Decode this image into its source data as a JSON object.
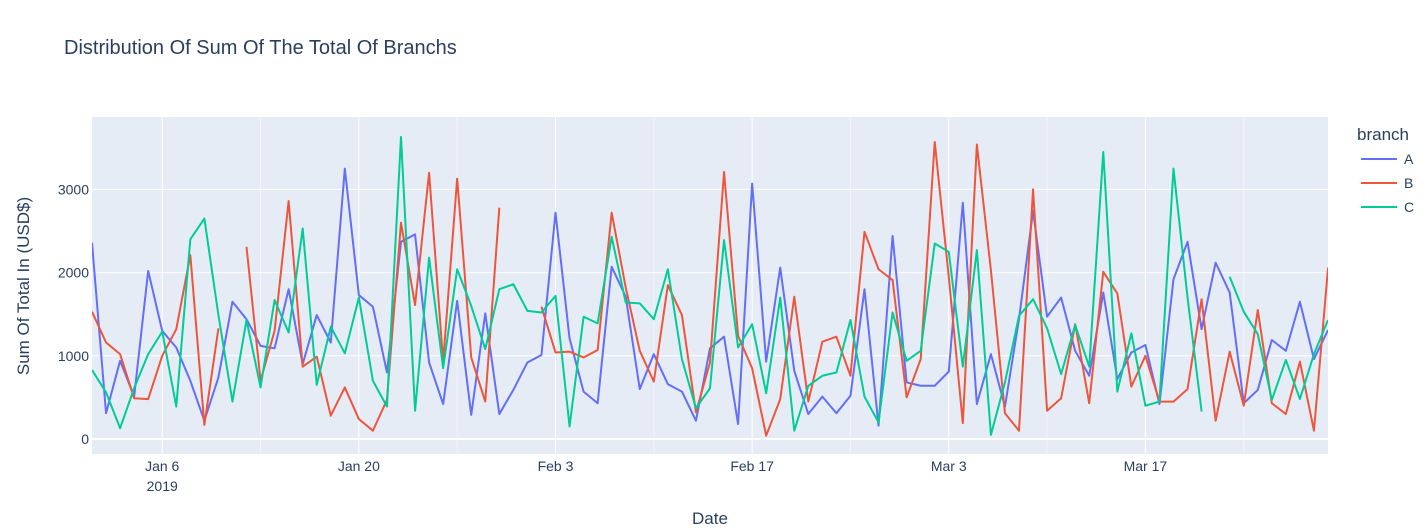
{
  "chart_data": {
    "type": "line",
    "title": "Distribution Of Sum Of The Total Of Branchs",
    "xlabel": "Date",
    "ylabel": "Sum Of Total In (USD$)",
    "xlim": [
      "2019-01-01",
      "2019-03-30"
    ],
    "ylim": [
      -180,
      3870
    ],
    "grid": true,
    "legend": {
      "title": "branch",
      "position": "top-right"
    },
    "x_ticks": [
      {
        "date": "2019-01-06",
        "label": "Jan 6",
        "sublabel": "2019"
      },
      {
        "date": "2019-01-20",
        "label": "Jan 20",
        "sublabel": ""
      },
      {
        "date": "2019-02-03",
        "label": "Feb 3",
        "sublabel": ""
      },
      {
        "date": "2019-02-17",
        "label": "Feb 17",
        "sublabel": ""
      },
      {
        "date": "2019-03-03",
        "label": "Mar 3",
        "sublabel": ""
      },
      {
        "date": "2019-03-17",
        "label": "Mar 17",
        "sublabel": ""
      }
    ],
    "y_ticks": [
      {
        "value": 0,
        "label": "0"
      },
      {
        "value": 1000,
        "label": "1000"
      },
      {
        "value": 2000,
        "label": "2000"
      },
      {
        "value": 3000,
        "label": "3000"
      }
    ],
    "series": [
      {
        "name": "A",
        "color": "#636efa",
        "points": [
          [
            "2019-01-01",
            2360
          ],
          [
            "2019-01-02",
            310
          ],
          [
            "2019-01-03",
            940
          ],
          [
            "2019-01-04",
            510
          ],
          [
            "2019-01-05",
            2020
          ],
          [
            "2019-01-06",
            1300
          ],
          [
            "2019-01-07",
            1100
          ],
          [
            "2019-01-08",
            700
          ],
          [
            "2019-01-09",
            220
          ],
          [
            "2019-01-10",
            740
          ],
          [
            "2019-01-11",
            1650
          ],
          [
            "2019-01-12",
            1440
          ],
          [
            "2019-01-13",
            1120
          ],
          [
            "2019-01-14",
            1090
          ],
          [
            "2019-01-15",
            1800
          ],
          [
            "2019-01-16",
            900
          ],
          [
            "2019-01-17",
            1490
          ],
          [
            "2019-01-18",
            1160
          ],
          [
            "2019-01-19",
            3250
          ],
          [
            "2019-01-20",
            1730
          ],
          [
            "2019-01-21",
            1590
          ],
          [
            "2019-01-22",
            800
          ],
          [
            "2019-01-23",
            2370
          ],
          [
            "2019-01-24",
            2460
          ],
          [
            "2019-01-25",
            920
          ],
          [
            "2019-01-26",
            420
          ],
          [
            "2019-01-27",
            1660
          ],
          [
            "2019-01-28",
            290
          ],
          [
            "2019-01-29",
            1510
          ],
          [
            "2019-01-30",
            300
          ],
          [
            "2019-01-31",
            590
          ],
          [
            "2019-02-01",
            920
          ],
          [
            "2019-02-02",
            1010
          ],
          [
            "2019-02-03",
            2720
          ],
          [
            "2019-02-04",
            1210
          ],
          [
            "2019-02-05",
            570
          ],
          [
            "2019-02-06",
            430
          ],
          [
            "2019-02-07",
            2070
          ],
          [
            "2019-02-08",
            1710
          ],
          [
            "2019-02-09",
            600
          ],
          [
            "2019-02-10",
            1020
          ],
          [
            "2019-02-11",
            660
          ],
          [
            "2019-02-12",
            570
          ],
          [
            "2019-02-13",
            220
          ],
          [
            "2019-02-14",
            1090
          ],
          [
            "2019-02-15",
            1230
          ],
          [
            "2019-02-16",
            180
          ],
          [
            "2019-02-17",
            3070
          ],
          [
            "2019-02-18",
            930
          ],
          [
            "2019-02-19",
            2060
          ],
          [
            "2019-02-20",
            820
          ],
          [
            "2019-02-21",
            300
          ],
          [
            "2019-02-22",
            510
          ],
          [
            "2019-02-23",
            310
          ],
          [
            "2019-02-24",
            520
          ],
          [
            "2019-02-25",
            1800
          ],
          [
            "2019-02-26",
            160
          ],
          [
            "2019-02-27",
            2440
          ],
          [
            "2019-02-28",
            680
          ],
          [
            "2019-03-01",
            640
          ],
          [
            "2019-03-02",
            640
          ],
          [
            "2019-03-03",
            810
          ],
          [
            "2019-03-04",
            2840
          ],
          [
            "2019-03-05",
            420
          ],
          [
            "2019-03-06",
            1020
          ],
          [
            "2019-03-07",
            390
          ],
          [
            "2019-03-08",
            1440
          ],
          [
            "2019-03-09",
            2740
          ],
          [
            "2019-03-10",
            1470
          ],
          [
            "2019-03-11",
            1700
          ],
          [
            "2019-03-12",
            1060
          ],
          [
            "2019-03-13",
            760
          ],
          [
            "2019-03-14",
            1760
          ],
          [
            "2019-03-15",
            720
          ],
          [
            "2019-03-16",
            1040
          ],
          [
            "2019-03-17",
            1130
          ],
          [
            "2019-03-18",
            420
          ],
          [
            "2019-03-19",
            1920
          ],
          [
            "2019-03-20",
            2370
          ],
          [
            "2019-03-21",
            1320
          ],
          [
            "2019-03-22",
            2120
          ],
          [
            "2019-03-23",
            1760
          ],
          [
            "2019-03-24",
            430
          ],
          [
            "2019-03-25",
            590
          ],
          [
            "2019-03-26",
            1190
          ],
          [
            "2019-03-27",
            1060
          ],
          [
            "2019-03-28",
            1650
          ],
          [
            "2019-03-29",
            960
          ],
          [
            "2019-03-30",
            1310
          ]
        ]
      },
      {
        "name": "B",
        "color": "#ef553b",
        "points": [
          [
            "2019-01-01",
            1530
          ],
          [
            "2019-01-02",
            1160
          ],
          [
            "2019-01-03",
            1020
          ],
          [
            "2019-01-04",
            490
          ],
          [
            "2019-01-05",
            480
          ],
          [
            "2019-01-06",
            1000
          ],
          [
            "2019-01-07",
            1320
          ],
          [
            "2019-01-08",
            2210
          ],
          [
            "2019-01-09",
            170
          ],
          [
            "2019-01-10",
            1330
          ],
          null,
          [
            "2019-01-12",
            2310
          ],
          [
            "2019-01-13",
            700
          ],
          [
            "2019-01-14",
            1300
          ],
          [
            "2019-01-15",
            2860
          ],
          [
            "2019-01-16",
            870
          ],
          [
            "2019-01-17",
            990
          ],
          [
            "2019-01-18",
            280
          ],
          [
            "2019-01-19",
            620
          ],
          [
            "2019-01-20",
            240
          ],
          [
            "2019-01-21",
            100
          ],
          [
            "2019-01-22",
            470
          ],
          [
            "2019-01-23",
            2600
          ],
          [
            "2019-01-24",
            1610
          ],
          [
            "2019-01-25",
            3200
          ],
          [
            "2019-01-26",
            930
          ],
          [
            "2019-01-27",
            3130
          ],
          [
            "2019-01-28",
            980
          ],
          [
            "2019-01-29",
            450
          ],
          [
            "2019-01-30",
            2780
          ],
          null,
          [
            "2019-02-02",
            1590
          ],
          [
            "2019-02-03",
            1040
          ],
          [
            "2019-02-04",
            1050
          ],
          [
            "2019-02-05",
            980
          ],
          [
            "2019-02-06",
            1070
          ],
          [
            "2019-02-07",
            2720
          ],
          [
            "2019-02-08",
            1820
          ],
          [
            "2019-02-09",
            1060
          ],
          [
            "2019-02-10",
            690
          ],
          [
            "2019-02-11",
            1850
          ],
          [
            "2019-02-12",
            1490
          ],
          [
            "2019-02-13",
            320
          ],
          [
            "2019-02-14",
            920
          ],
          [
            "2019-02-15",
            3210
          ],
          [
            "2019-02-16",
            1240
          ],
          [
            "2019-02-17",
            850
          ],
          [
            "2019-02-18",
            40
          ],
          [
            "2019-02-19",
            480
          ],
          [
            "2019-02-20",
            1710
          ],
          [
            "2019-02-21",
            450
          ],
          [
            "2019-02-22",
            1170
          ],
          [
            "2019-02-23",
            1230
          ],
          [
            "2019-02-24",
            760
          ],
          [
            "2019-02-25",
            2490
          ],
          [
            "2019-02-26",
            2040
          ],
          [
            "2019-02-27",
            1910
          ],
          [
            "2019-02-28",
            500
          ],
          [
            "2019-03-01",
            960
          ],
          [
            "2019-03-02",
            3570
          ],
          [
            "2019-03-03",
            1950
          ],
          [
            "2019-03-04",
            190
          ],
          [
            "2019-03-05",
            3540
          ],
          [
            "2019-03-06",
            2030
          ],
          [
            "2019-03-07",
            310
          ],
          [
            "2019-03-08",
            100
          ],
          [
            "2019-03-09",
            3000
          ],
          [
            "2019-03-10",
            340
          ],
          [
            "2019-03-11",
            490
          ],
          [
            "2019-03-12",
            1380
          ],
          [
            "2019-03-13",
            430
          ],
          [
            "2019-03-14",
            2010
          ],
          [
            "2019-03-15",
            1750
          ],
          [
            "2019-03-16",
            630
          ],
          [
            "2019-03-17",
            1000
          ],
          [
            "2019-03-18",
            450
          ],
          [
            "2019-03-19",
            450
          ],
          [
            "2019-03-20",
            600
          ],
          [
            "2019-03-21",
            1680
          ],
          [
            "2019-03-22",
            220
          ],
          [
            "2019-03-23",
            1050
          ],
          [
            "2019-03-24",
            400
          ],
          [
            "2019-03-25",
            1550
          ],
          [
            "2019-03-26",
            430
          ],
          [
            "2019-03-27",
            300
          ],
          [
            "2019-03-28",
            930
          ],
          [
            "2019-03-29",
            100
          ],
          [
            "2019-03-30",
            2050
          ],
          [
            "2019-03-31",
            1730
          ]
        ]
      },
      {
        "name": "C",
        "color": "#00cc96",
        "points": [
          [
            "2019-01-01",
            830
          ],
          [
            "2019-01-02",
            560
          ],
          [
            "2019-01-03",
            130
          ],
          [
            "2019-01-04",
            610
          ],
          [
            "2019-01-05",
            1020
          ],
          [
            "2019-01-06",
            1290
          ],
          [
            "2019-01-07",
            390
          ],
          [
            "2019-01-08",
            2400
          ],
          [
            "2019-01-09",
            2650
          ],
          [
            "2019-01-10",
            1490
          ],
          [
            "2019-01-11",
            450
          ],
          [
            "2019-01-12",
            1430
          ],
          [
            "2019-01-13",
            620
          ],
          [
            "2019-01-14",
            1670
          ],
          [
            "2019-01-15",
            1280
          ],
          [
            "2019-01-16",
            2530
          ],
          [
            "2019-01-17",
            650
          ],
          [
            "2019-01-18",
            1350
          ],
          [
            "2019-01-19",
            1030
          ],
          [
            "2019-01-20",
            1700
          ],
          [
            "2019-01-21",
            700
          ],
          [
            "2019-01-22",
            390
          ],
          [
            "2019-01-23",
            3630
          ],
          [
            "2019-01-24",
            340
          ],
          [
            "2019-01-25",
            2180
          ],
          [
            "2019-01-26",
            850
          ],
          [
            "2019-01-27",
            2040
          ],
          [
            "2019-01-28",
            1600
          ],
          [
            "2019-01-29",
            1080
          ],
          [
            "2019-01-30",
            1800
          ],
          [
            "2019-01-31",
            1860
          ],
          [
            "2019-02-01",
            1540
          ],
          [
            "2019-02-02",
            1520
          ],
          [
            "2019-02-03",
            1720
          ],
          [
            "2019-02-04",
            150
          ],
          [
            "2019-02-05",
            1470
          ],
          [
            "2019-02-06",
            1390
          ],
          [
            "2019-02-07",
            2430
          ],
          [
            "2019-02-08",
            1640
          ],
          [
            "2019-02-09",
            1630
          ],
          [
            "2019-02-10",
            1440
          ],
          [
            "2019-02-11",
            2040
          ],
          [
            "2019-02-12",
            960
          ],
          [
            "2019-02-13",
            370
          ],
          [
            "2019-02-14",
            610
          ],
          [
            "2019-02-15",
            2390
          ],
          [
            "2019-02-16",
            1100
          ],
          [
            "2019-02-17",
            1380
          ],
          [
            "2019-02-18",
            550
          ],
          [
            "2019-02-19",
            1700
          ],
          [
            "2019-02-20",
            100
          ],
          [
            "2019-02-21",
            640
          ],
          [
            "2019-02-22",
            760
          ],
          [
            "2019-02-23",
            800
          ],
          [
            "2019-02-24",
            1430
          ],
          [
            "2019-02-25",
            510
          ],
          [
            "2019-02-26",
            200
          ],
          [
            "2019-02-27",
            1520
          ],
          [
            "2019-02-28",
            940
          ],
          [
            "2019-03-01",
            1060
          ],
          [
            "2019-03-02",
            2350
          ],
          [
            "2019-03-03",
            2250
          ],
          [
            "2019-03-04",
            870
          ],
          [
            "2019-03-05",
            2270
          ],
          [
            "2019-03-06",
            50
          ],
          [
            "2019-03-07",
            680
          ],
          [
            "2019-03-08",
            1480
          ],
          [
            "2019-03-09",
            1680
          ],
          [
            "2019-03-10",
            1330
          ],
          [
            "2019-03-11",
            780
          ],
          [
            "2019-03-12",
            1370
          ],
          [
            "2019-03-13",
            870
          ],
          [
            "2019-03-14",
            3450
          ],
          [
            "2019-03-15",
            570
          ],
          [
            "2019-03-16",
            1270
          ],
          [
            "2019-03-17",
            400
          ],
          [
            "2019-03-18",
            450
          ],
          [
            "2019-03-19",
            3250
          ],
          [
            "2019-03-20",
            1700
          ],
          [
            "2019-03-21",
            330
          ],
          null,
          [
            "2019-03-23",
            1950
          ],
          [
            "2019-03-24",
            1530
          ],
          [
            "2019-03-25",
            1260
          ],
          [
            "2019-03-26",
            470
          ],
          [
            "2019-03-27",
            950
          ],
          [
            "2019-03-28",
            480
          ],
          [
            "2019-03-29",
            1020
          ],
          [
            "2019-03-30",
            1430
          ]
        ]
      }
    ]
  }
}
